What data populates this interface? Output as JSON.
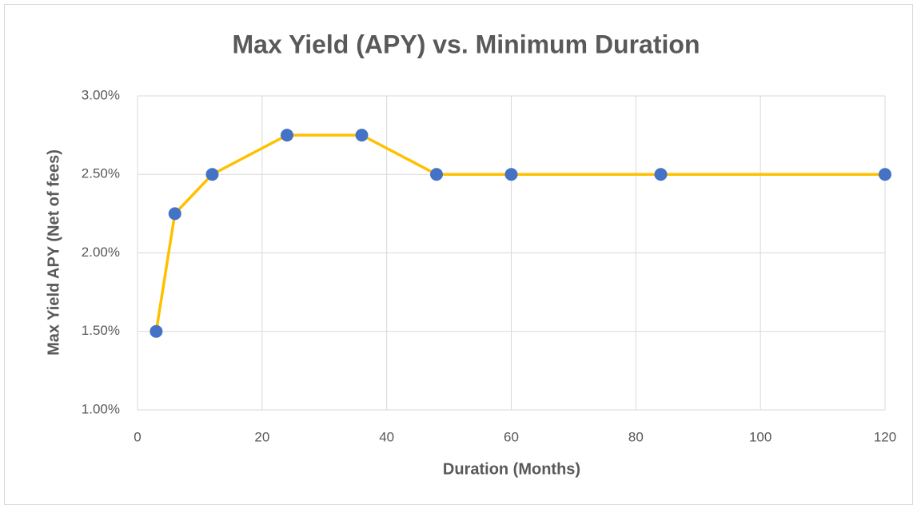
{
  "chart_data": {
    "type": "line",
    "title": "Max Yield (APY) vs. Minimum Duration",
    "x_label": "Duration (Months)",
    "y_label": "Max Yield APY (Net of fees)",
    "x": [
      3,
      6,
      12,
      24,
      36,
      48,
      60,
      84,
      120
    ],
    "series": [
      {
        "color": "#FFC000",
        "marker_color": "#4472C4",
        "values": [
          1.5,
          2.25,
          2.5,
          2.75,
          2.75,
          2.5,
          2.5,
          2.5,
          2.5
        ]
      }
    ],
    "xlim": [
      0,
      120
    ],
    "xticks": [
      0,
      20,
      40,
      60,
      80,
      100,
      120
    ],
    "ylim": [
      1,
      3
    ],
    "yticks": [
      {
        "value": 1,
        "label": "1.00%"
      },
      {
        "value": 1.5,
        "label": "1.50%"
      },
      {
        "value": 2,
        "label": "2.00%"
      },
      {
        "value": 2.5,
        "label": "2.50%"
      },
      {
        "value": 3,
        "label": "3.00%"
      }
    ],
    "grid": true
  }
}
